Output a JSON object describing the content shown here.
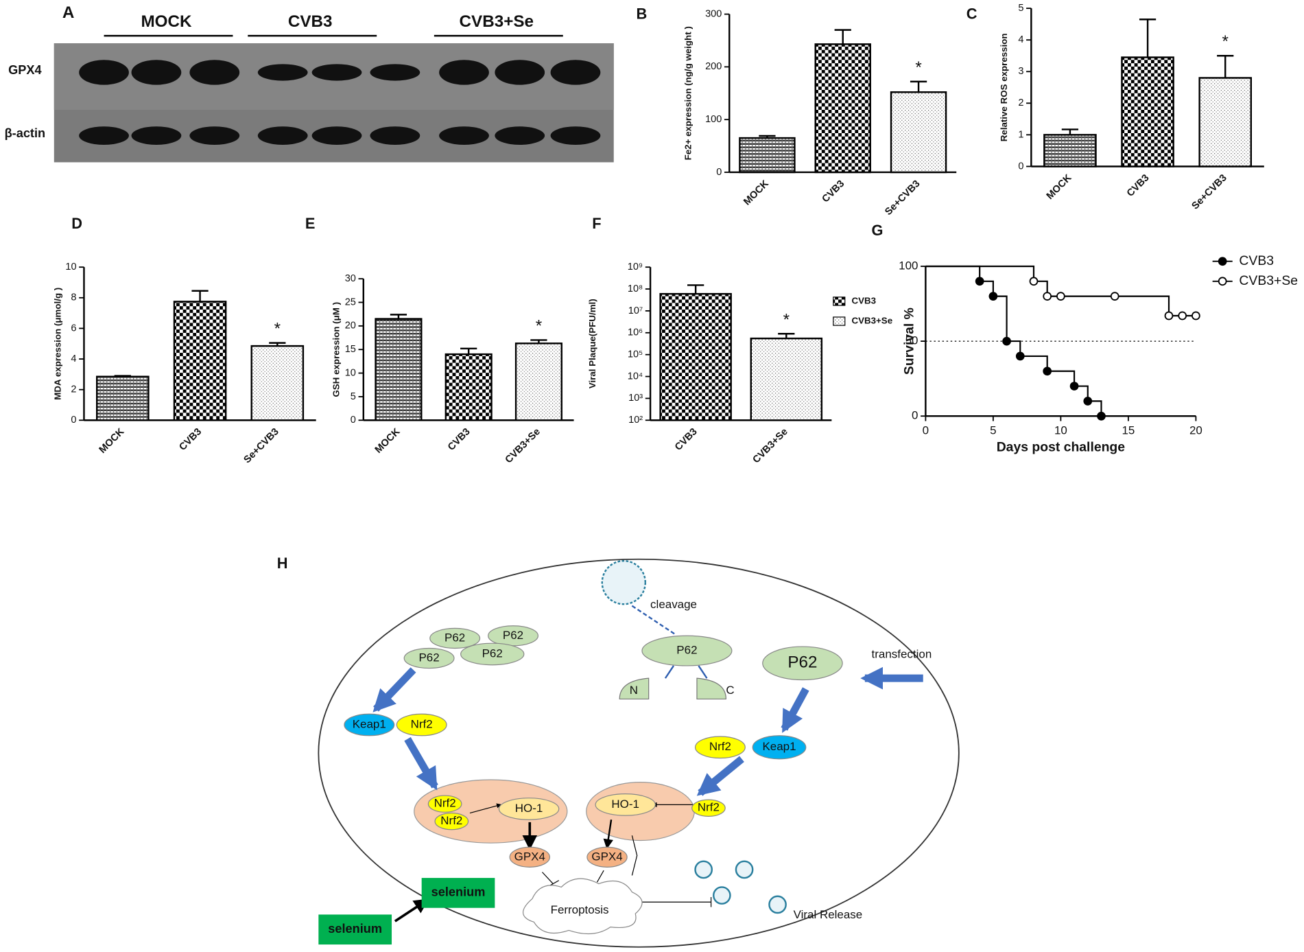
{
  "blot": {
    "panel": "A",
    "groups": [
      "MOCK",
      "CVB3",
      "CVB3+Se"
    ],
    "rows": [
      "GPX4",
      "β-actin"
    ]
  },
  "chart_data": [
    {
      "panel": "B",
      "type": "bar",
      "categories": [
        "MOCK",
        "CVB3",
        "Se+CVB3"
      ],
      "values": [
        65,
        243,
        152
      ],
      "errors": [
        4,
        27,
        20
      ],
      "ylabel": "Fe2+ expression (ng/g weight )",
      "ylim": [
        0,
        300
      ],
      "yticks": [
        0,
        100,
        200,
        300
      ],
      "patterns": [
        "lines",
        "checker",
        "dots"
      ],
      "annotations": [
        {
          "text": "*",
          "index": 2
        }
      ]
    },
    {
      "panel": "C",
      "type": "bar",
      "categories": [
        "MOCK",
        "CVB3",
        "Se+CVB3"
      ],
      "values": [
        1.0,
        3.45,
        2.8
      ],
      "errors": [
        0.17,
        1.2,
        0.7
      ],
      "ylabel": "Relative ROS expression",
      "ylim": [
        0,
        5
      ],
      "yticks": [
        0,
        1,
        2,
        3,
        4,
        5
      ],
      "patterns": [
        "lines",
        "checker",
        "dots"
      ],
      "annotations": [
        {
          "text": "*",
          "index": 2
        }
      ]
    },
    {
      "panel": "D",
      "type": "bar",
      "categories": [
        "MOCK",
        "CVB3",
        "Se+CVB3"
      ],
      "values": [
        2.85,
        7.75,
        4.85
      ],
      "errors": [
        0.05,
        0.7,
        0.2
      ],
      "ylabel": "MDA expression (μmol/g  )",
      "ylim": [
        0,
        10
      ],
      "yticks": [
        0,
        2,
        4,
        6,
        8,
        10
      ],
      "patterns": [
        "lines",
        "checker",
        "dots"
      ],
      "annotations": [
        {
          "text": "*",
          "index": 2
        }
      ]
    },
    {
      "panel": "E",
      "type": "bar",
      "categories": [
        "MOCK",
        "CVB3",
        "CVB3+Se"
      ],
      "values": [
        21.5,
        14.0,
        16.3
      ],
      "errors": [
        0.9,
        1.2,
        0.7
      ],
      "ylabel": "GSH expression (μM )",
      "ylim": [
        0,
        30
      ],
      "yticks": [
        0,
        5,
        10,
        15,
        20,
        25,
        30
      ],
      "patterns": [
        "lines",
        "checker",
        "dots"
      ],
      "annotations": [
        {
          "text": "*",
          "index": 2
        }
      ]
    },
    {
      "panel": "F",
      "type": "bar",
      "log_scale": true,
      "legend": "right",
      "categories": [
        "CVB3",
        "CVB3+Se"
      ],
      "values": [
        60000000,
        550000
      ],
      "errors": [
        90000000,
        350000
      ],
      "ylabel": "Viral Plaque(PFU/ml)",
      "ylim": [
        100,
        1000000000
      ],
      "yticks": [
        {
          "value": 100,
          "label": "10²"
        },
        {
          "value": 1000,
          "label": "10³"
        },
        {
          "value": 10000,
          "label": "10⁴"
        },
        {
          "value": 100000,
          "label": "10⁵"
        },
        {
          "value": 1000000,
          "label": "10⁶"
        },
        {
          "value": 10000000,
          "label": "10⁷"
        },
        {
          "value": 100000000,
          "label": "10⁸"
        },
        {
          "value": 1000000000,
          "label": "10⁹"
        }
      ],
      "patterns": [
        "checker",
        "dots"
      ],
      "annotations": [
        {
          "text": "*",
          "index": 1
        }
      ]
    },
    {
      "panel": "G",
      "type": "line",
      "step": true,
      "legend": "right",
      "color": "#000000",
      "xlabel": "Days post challenge",
      "ylabel": "Survival %",
      "xlim": [
        0,
        20
      ],
      "xticks": [
        0,
        5,
        10,
        15,
        20
      ],
      "ylim": [
        0,
        100
      ],
      "yticks": [
        0,
        50,
        100
      ],
      "reference_line": 50,
      "series": [
        {
          "name": "CVB3",
          "marker": "filled",
          "x": [
            0,
            4,
            5,
            6,
            7,
            9,
            11,
            12,
            13
          ],
          "values": [
            100,
            90,
            80,
            50,
            40,
            30,
            20,
            10,
            0
          ]
        },
        {
          "name": "CVB3+Se",
          "marker": "open",
          "x": [
            0,
            8,
            9,
            10,
            14,
            18,
            19,
            20
          ],
          "values": [
            100,
            90,
            80,
            80,
            80,
            67,
            67,
            67
          ]
        }
      ]
    }
  ],
  "diagram": {
    "panel": "H",
    "labels": [
      "cleavage",
      "P62",
      "P62",
      "P62",
      "P62",
      "P62",
      "P62",
      "N",
      "C",
      "transfection",
      "Keap1",
      "Nrf2",
      "Nrf2",
      "Keap1",
      "Nrf2",
      "Nrf2",
      "HO-1",
      "HO-1",
      "Nrf2",
      "GPX4",
      "GPX4",
      "Ferroptosis",
      "Viral Release",
      "selenium",
      "selenium"
    ]
  }
}
